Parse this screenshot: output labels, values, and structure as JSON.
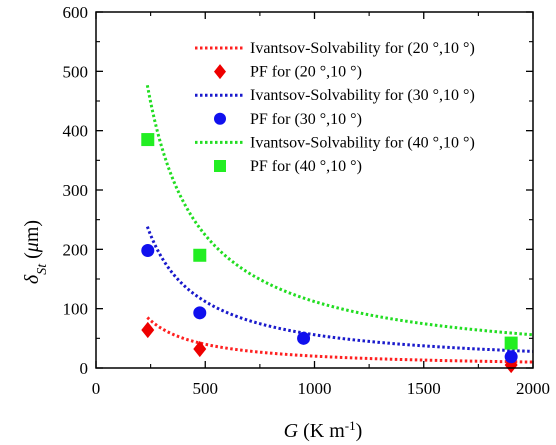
{
  "chart_data": {
    "type": "scatter",
    "xlabel": {
      "italic": "G",
      "main": " (K m",
      "sup": "-1",
      "end": ")"
    },
    "ylabel": {
      "italic": "δ",
      "sub": "St",
      "main": " (",
      "mu": "μ",
      "end": "m)"
    },
    "xlim": [
      0,
      2000
    ],
    "ylim": [
      0,
      600
    ],
    "xticks": [
      0,
      500,
      1000,
      1500,
      2000
    ],
    "yticks": [
      0,
      100,
      200,
      300,
      400,
      500,
      600
    ],
    "x_tick_labels": [
      "0",
      "500",
      "1000",
      "1500",
      "2000"
    ],
    "y_tick_labels": [
      "0",
      "100",
      "200",
      "300",
      "400",
      "500",
      "600"
    ],
    "legend_position": "top-right",
    "curves": [
      {
        "name": "Ivantsov-Solvability for (20 °,10 °)",
        "color": "#ff2020",
        "coef": 20000,
        "x_range": [
          235,
          2000
        ]
      },
      {
        "name": "Ivantsov-Solvability for (30 °,10 °)",
        "color": "#1a1acc",
        "coef": 56000,
        "x_range": [
          235,
          2000
        ]
      },
      {
        "name": "Ivantsov-Solvability for (40 °,10 °)",
        "color": "#22dd22",
        "coef": 112000,
        "x_range": [
          235,
          2000
        ]
      }
    ],
    "series": [
      {
        "name": "PF for (20 °,10 °)",
        "marker": "diamond",
        "color": "#ee0000",
        "x": [
          237,
          475,
          1900
        ],
        "y": [
          64,
          32,
          5
        ]
      },
      {
        "name": "PF for (30 °,10 °)",
        "marker": "circle",
        "color": "#1010ee",
        "x": [
          237,
          475,
          950,
          1900
        ],
        "y": [
          198,
          93,
          50,
          19
        ]
      },
      {
        "name": "PF for (40 °,10 °)",
        "marker": "square",
        "color": "#22ee22",
        "x": [
          237,
          475,
          1900
        ],
        "y": [
          385,
          190,
          42
        ]
      }
    ]
  }
}
